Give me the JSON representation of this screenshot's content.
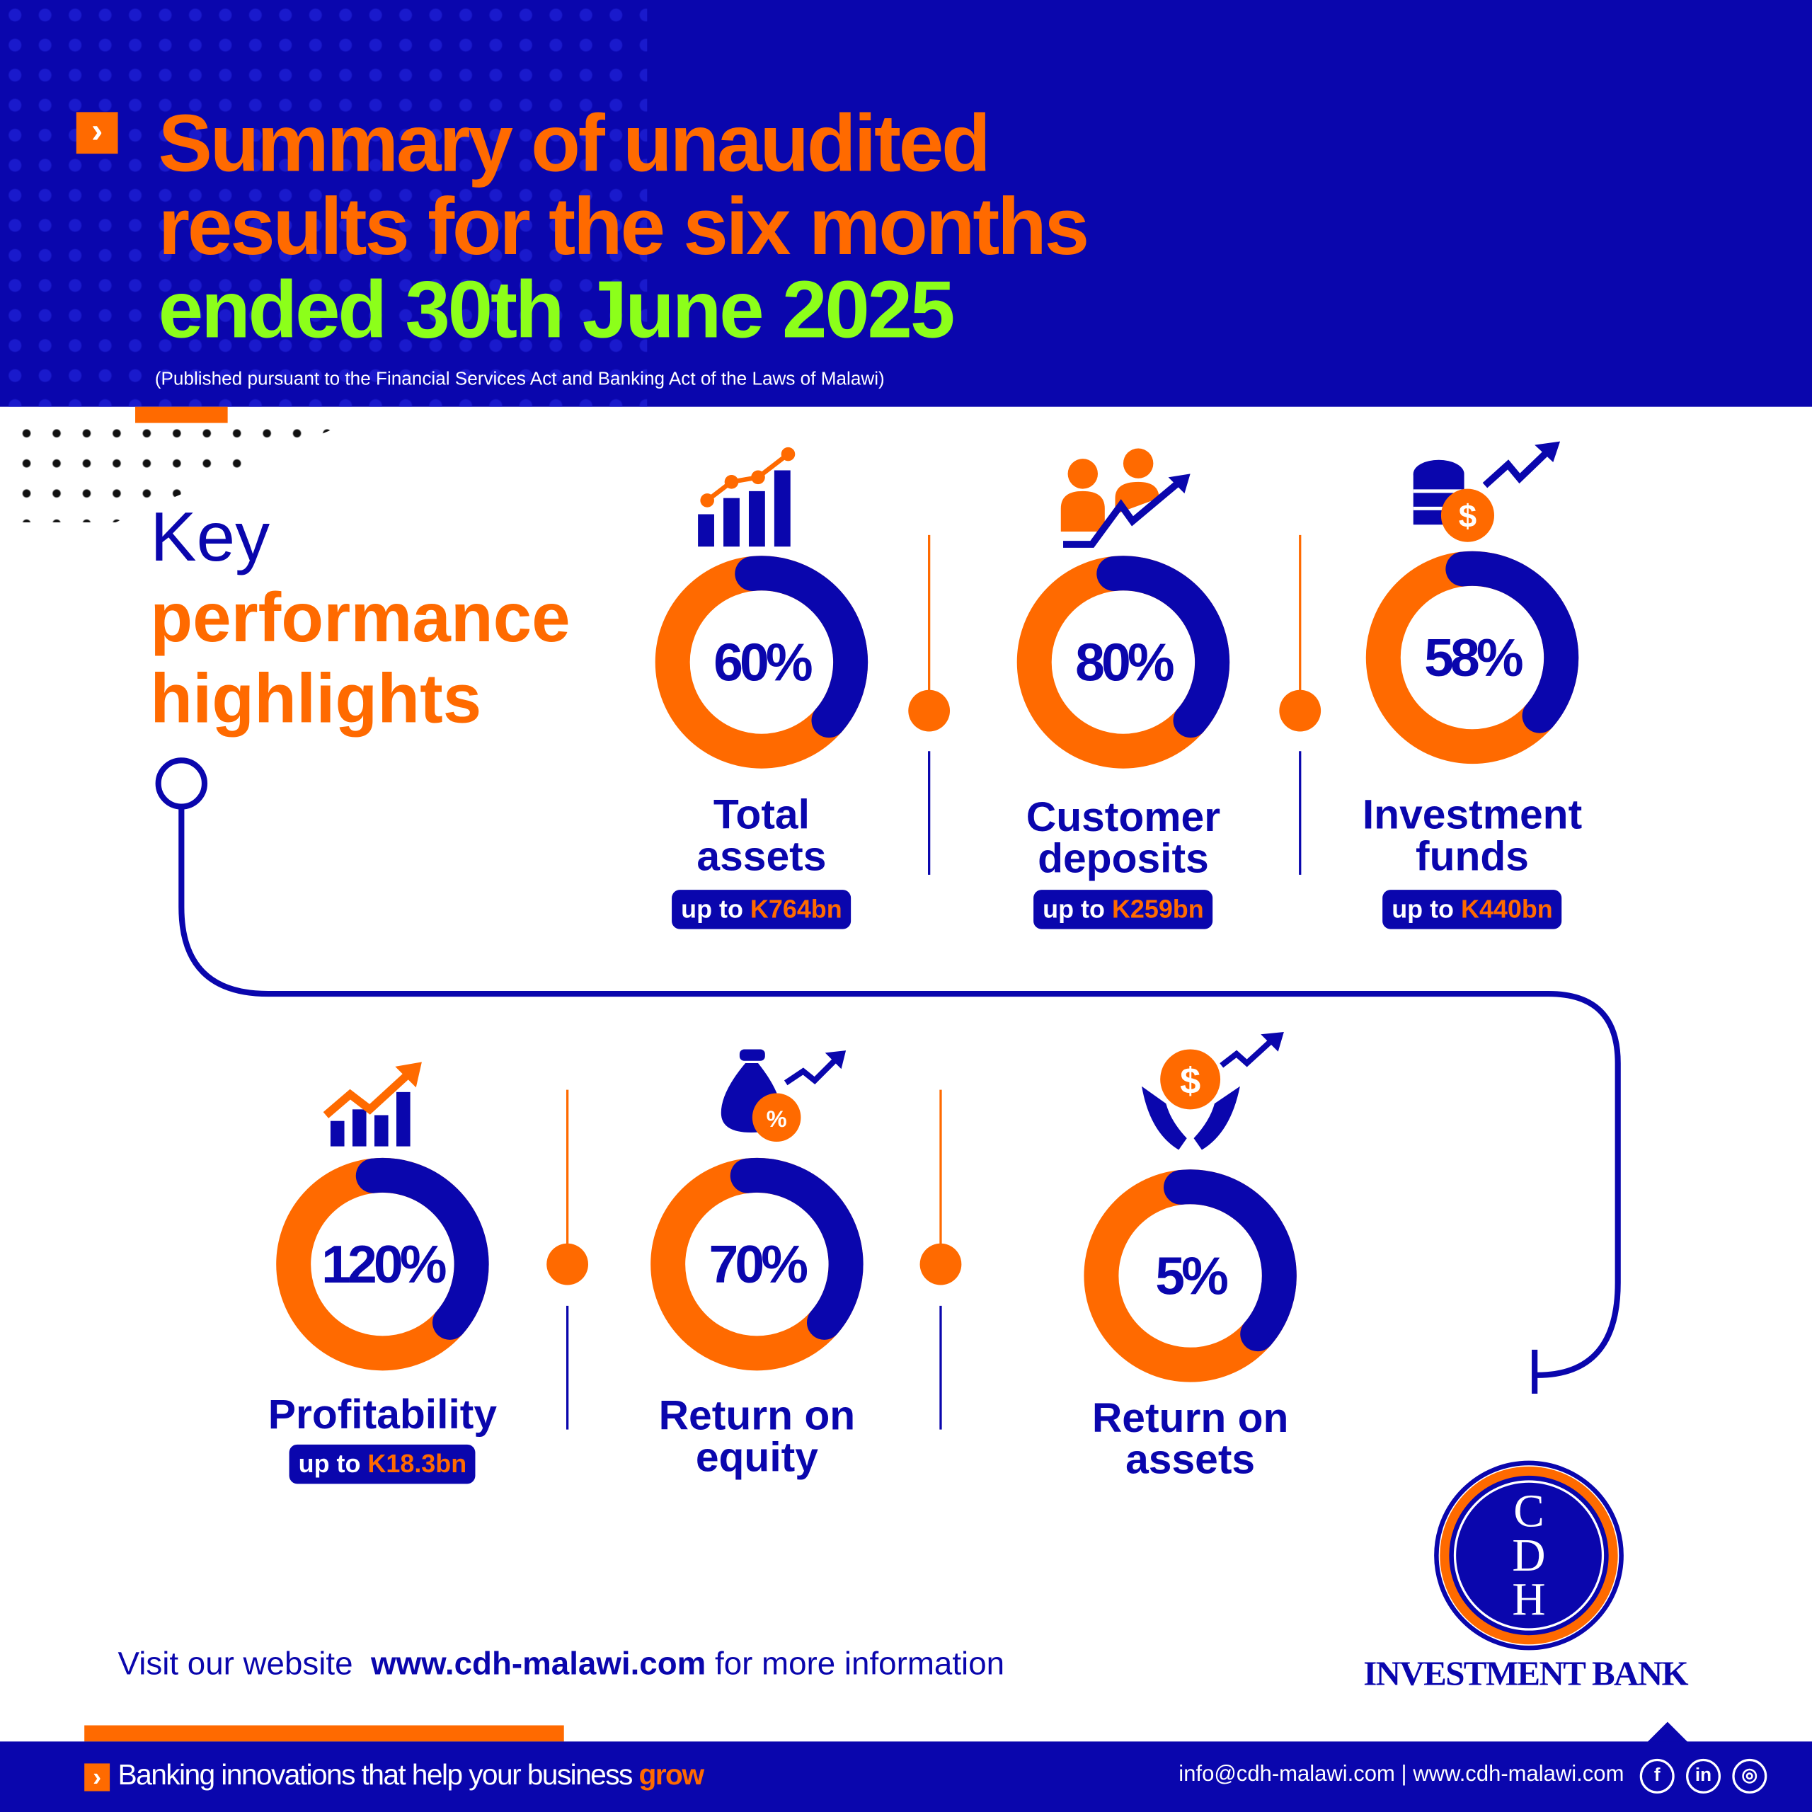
{
  "header": {
    "title_line1": "Summary of unaudited",
    "title_line2": "results for the six months",
    "title_line3": "ended 30th June 2025",
    "subtitle": "(Published pursuant to the Financial Services Act and Banking Act of the Laws of Malawi)"
  },
  "section": {
    "key": "Key",
    "line2": "performance",
    "line3": "highlights"
  },
  "metrics": [
    {
      "percent": "60%",
      "value": 0.6,
      "label1": "Total",
      "label2": "assets",
      "badge_prefix": "up to",
      "badge_value": "K764bn"
    },
    {
      "percent": "80%",
      "value": 0.8,
      "label1": "Customer",
      "label2": "deposits",
      "badge_prefix": "up to",
      "badge_value": "K259bn"
    },
    {
      "percent": "58%",
      "value": 0.58,
      "label1": "Investment",
      "label2": "funds",
      "badge_prefix": "up to",
      "badge_value": "K440bn"
    },
    {
      "percent": "120%",
      "value": 1.2,
      "label1": "Profitability",
      "badge_prefix": "up to",
      "badge_value": "K18.3bn"
    },
    {
      "percent": "70%",
      "value": 0.7,
      "label1": "Return on",
      "label2": "equity"
    },
    {
      "percent": "5%",
      "value": 0.05,
      "label1": "Return on",
      "label2": "assets"
    }
  ],
  "website": {
    "prefix": "Visit our website",
    "url": "www.cdh-malawi.com",
    "suffix": "for more information"
  },
  "logo": {
    "letters": "CDH",
    "name": "INVESTMENT BANK"
  },
  "footer": {
    "tagline": "Banking innovations that help your business",
    "tagline_accent": "grow",
    "contact": "info@cdh-malawi.com | www.cdh-malawi.com"
  },
  "colors": {
    "blue": "#0a06ad",
    "orange": "#ff6a00",
    "green": "#8cff1a"
  }
}
